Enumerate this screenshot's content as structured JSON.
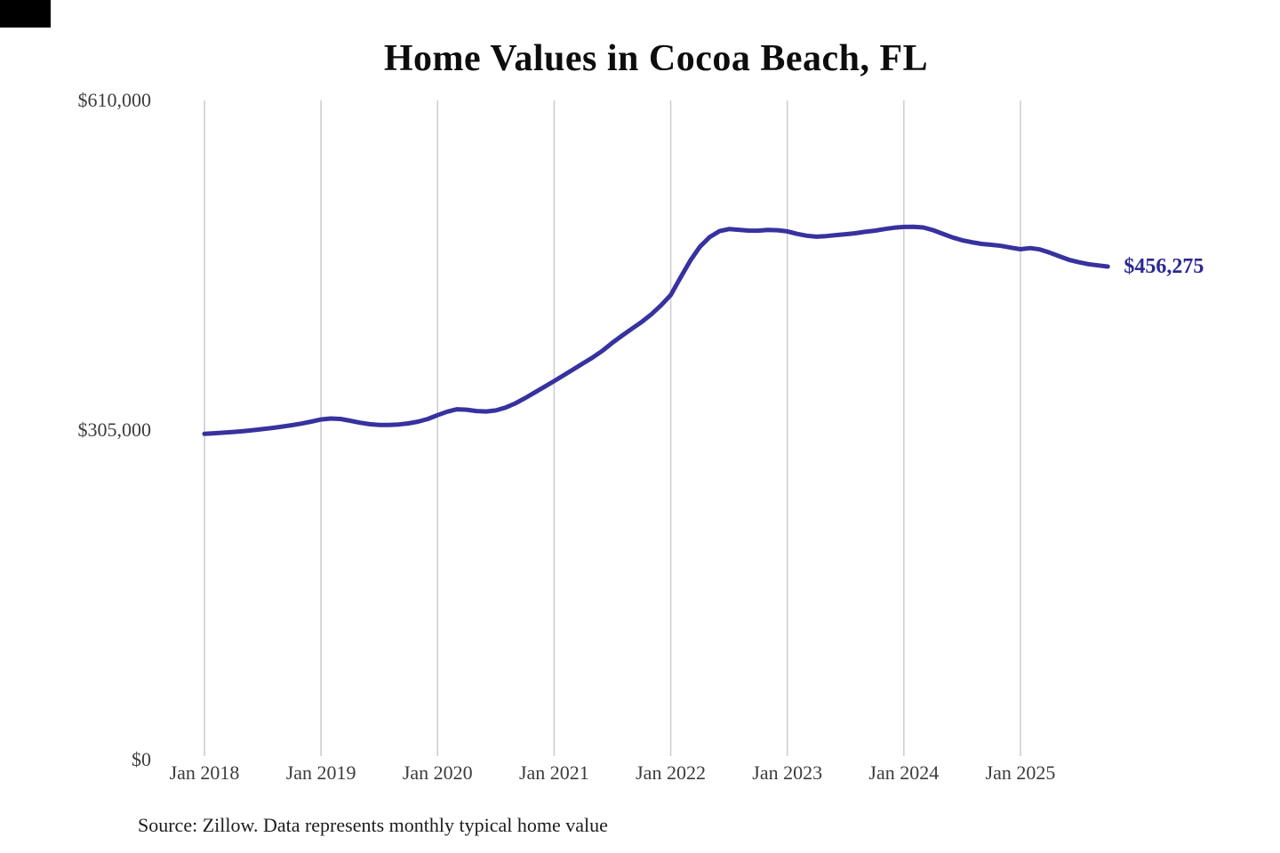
{
  "title": "Home Values in Cocoa Beach, FL",
  "source_note": "Source: Zillow. Data represents monthly typical home value",
  "colors": {
    "line": "#37329f",
    "end_label": "#2c2a91",
    "grid": "#cccccc",
    "title_text": "#0d0d0d",
    "axis_text": "#3c3c3c",
    "source_text": "#1d1d1d",
    "background": "#ffffff",
    "corner_mark": "#000000"
  },
  "chart_data": {
    "type": "line",
    "title": "Home Values in Cocoa Beach, FL",
    "xlabel": "",
    "ylabel": "",
    "ylim": [
      0,
      610000
    ],
    "grid": "vertical-only",
    "legend": "none",
    "y_ticks": [
      {
        "label": "$0",
        "value": 0
      },
      {
        "label": "$305,000",
        "value": 305000
      },
      {
        "label": "$610,000",
        "value": 610000
      }
    ],
    "x_ticks": [
      "Jan 2018",
      "Jan 2019",
      "Jan 2020",
      "Jan 2021",
      "Jan 2022",
      "Jan 2023",
      "Jan 2024",
      "Jan 2025"
    ],
    "x_start_month": "Jan 2018",
    "x_end_month": "Oct 2025",
    "final_value": 456275,
    "final_value_label": "$456,275",
    "series": [
      {
        "name": "Monthly typical home value",
        "monthly_values": [
          301500,
          302000,
          302600,
          303300,
          304000,
          304900,
          305900,
          307000,
          308200,
          309500,
          311000,
          312800,
          314800,
          315700,
          315300,
          313600,
          311800,
          310400,
          309800,
          309700,
          310200,
          311200,
          312800,
          315300,
          318800,
          322000,
          324200,
          323800,
          322600,
          322200,
          323200,
          325800,
          329700,
          334500,
          339800,
          345000,
          350300,
          355800,
          361300,
          366800,
          372300,
          378600,
          385800,
          392400,
          398700,
          405000,
          412000,
          420300,
          430000,
          446000,
          461500,
          474500,
          483500,
          489000,
          491000,
          490300,
          489600,
          489500,
          490200,
          489900,
          488800,
          486500,
          484800,
          483900,
          484500,
          485400,
          486200,
          487100,
          488400,
          489500,
          491000,
          492200,
          492900,
          493100,
          492400,
          490000,
          486600,
          483200,
          480600,
          478800,
          477200,
          476400,
          475400,
          473800,
          472300,
          473400,
          472100,
          469200,
          465800,
          462500,
          460300,
          458500,
          457300,
          456275
        ]
      }
    ]
  }
}
